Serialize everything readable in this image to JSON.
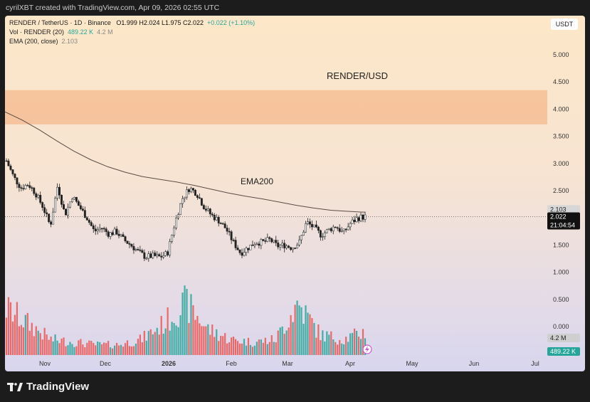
{
  "header": {
    "credit": "cyrilXBT created with TradingView.com, Apr 09, 2026 02:55 UTC"
  },
  "legend": {
    "symbol": "RENDER / TetherUS · 1D · Binance",
    "ohlc": "O1.999  H2.024  L1.975  C2.022",
    "change": "+0.022 (+1.10%)",
    "vol_label": "Vol · RENDER (20)",
    "vol_value": "489.22 K",
    "vol_ma": "4.2 M",
    "ema_label": "EMA (200, close)",
    "ema_value": "2.103"
  },
  "currency_button": "USDT",
  "annotations": {
    "pair": "RENDER/USD",
    "ema": "EMA200"
  },
  "price_badges": {
    "ema": "2.103",
    "last": "2.022",
    "countdown": "21:04:54",
    "vol_ma": "4.2 M",
    "vol": "489.22 K"
  },
  "footer": {
    "brand": "TradingView"
  },
  "colors": {
    "up": "#26a69a",
    "down": "#ef5350",
    "resistance_zone": "#f5bd94",
    "ema_line": "#5b4c44"
  },
  "chart_data": {
    "type": "candlestick",
    "title": "RENDER/USD",
    "x_ticks": [
      "Nov",
      "Dec",
      "2026",
      "Feb",
      "Mar",
      "Apr",
      "May",
      "Jun",
      "Jul"
    ],
    "y_ticks": [
      "5.000",
      "4.500",
      "4.000",
      "3.500",
      "3.000",
      "2.500",
      "2.000",
      "1.500",
      "1.000",
      "0.500",
      "0.000"
    ],
    "ylim": [
      0,
      5.4
    ],
    "resistance_zone": [
      3.72,
      4.35
    ],
    "last_price": 2.022,
    "ema200": [
      3.95,
      3.8,
      3.62,
      3.42,
      3.23,
      3.07,
      2.94,
      2.84,
      2.76,
      2.71,
      2.66,
      2.6,
      2.53,
      2.46,
      2.4,
      2.35,
      2.29,
      2.23,
      2.18,
      2.14,
      2.12,
      2.103
    ],
    "price_path": [
      3.05,
      2.75,
      2.55,
      2.62,
      2.45,
      2.2,
      1.85,
      2.6,
      2.05,
      2.4,
      2.2,
      2.0,
      1.75,
      1.82,
      1.7,
      1.75,
      1.6,
      1.5,
      1.38,
      1.28,
      1.3,
      1.28,
      1.35,
      1.9,
      2.35,
      2.55,
      2.45,
      2.2,
      2.05,
      1.95,
      1.8,
      1.55,
      1.35,
      1.45,
      1.55,
      1.55,
      1.6,
      1.48,
      1.5,
      1.45,
      1.55,
      1.92,
      1.82,
      1.68,
      1.78,
      1.85,
      1.72,
      1.9,
      2.0,
      2.022
    ],
    "volume_peaks": [
      0.9,
      0.6,
      0.3,
      0.25,
      0.2,
      0.2,
      0.3,
      0.6,
      1.0,
      0.5,
      0.3,
      0.25,
      0.3,
      1.0,
      0.4,
      0.3,
      0.45
    ]
  }
}
